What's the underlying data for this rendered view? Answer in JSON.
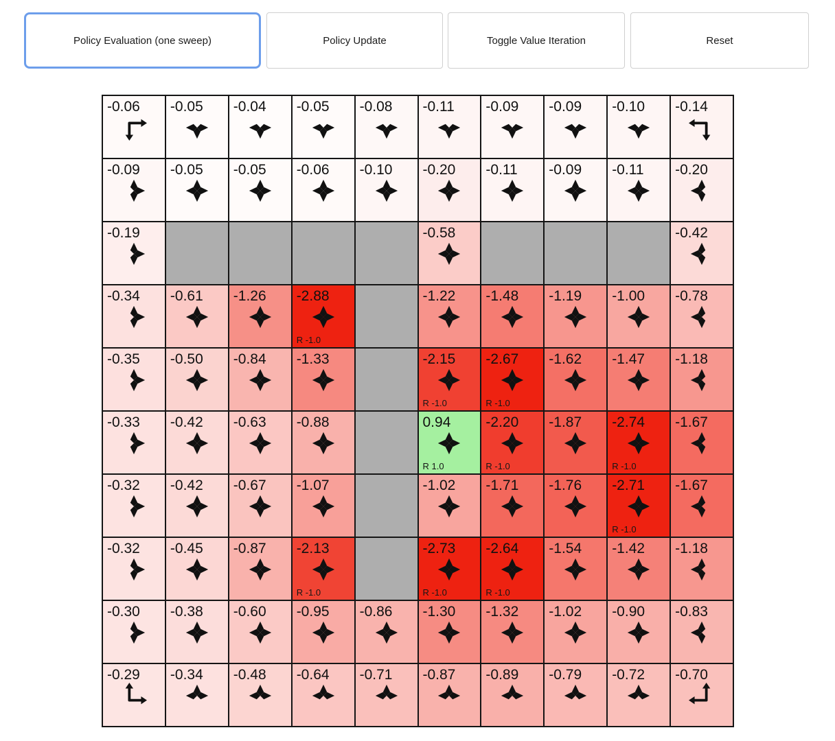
{
  "toolbar": {
    "buttons": [
      {
        "label": "Policy Evaluation (one sweep)",
        "active": true
      },
      {
        "label": "Policy Update",
        "active": false
      },
      {
        "label": "Toggle Value Iteration",
        "active": false
      },
      {
        "label": "Reset",
        "active": false
      }
    ]
  },
  "colors": {
    "active_button_border": "#6d9eeb",
    "button_border": "#cfcfcf",
    "grid_line": "#151515",
    "wall": "#aeaeae",
    "terminal_red": "#ee2211",
    "terminal_green": "#a5f0a0",
    "text": "#111111"
  },
  "grid": {
    "rows": 10,
    "cols": 10,
    "cells": [
      [
        {
          "value": "-0.06",
          "actions": [
            "right",
            "down"
          ],
          "bg": "#fffaf9"
        },
        {
          "value": "-0.05",
          "actions": [
            "left",
            "right",
            "down"
          ],
          "bg": "#fffbfa"
        },
        {
          "value": "-0.04",
          "actions": [
            "left",
            "right",
            "down"
          ],
          "bg": "#fffcfb"
        },
        {
          "value": "-0.05",
          "actions": [
            "left",
            "right",
            "down"
          ],
          "bg": "#fffbfa"
        },
        {
          "value": "-0.08",
          "actions": [
            "left",
            "right",
            "down"
          ],
          "bg": "#fef8f7"
        },
        {
          "value": "-0.11",
          "actions": [
            "left",
            "right",
            "down"
          ],
          "bg": "#fef5f4"
        },
        {
          "value": "-0.09",
          "actions": [
            "left",
            "right",
            "down"
          ],
          "bg": "#fef7f6"
        },
        {
          "value": "-0.09",
          "actions": [
            "left",
            "right",
            "down"
          ],
          "bg": "#fef7f6"
        },
        {
          "value": "-0.10",
          "actions": [
            "left",
            "right",
            "down"
          ],
          "bg": "#fef6f5"
        },
        {
          "value": "-0.14",
          "actions": [
            "left",
            "down"
          ],
          "bg": "#fef3f2"
        }
      ],
      [
        {
          "value": "-0.09",
          "actions": [
            "up",
            "right",
            "down"
          ],
          "bg": "#fef7f6"
        },
        {
          "value": "-0.05",
          "actions": [
            "up",
            "right",
            "down",
            "left"
          ],
          "bg": "#fffbfa"
        },
        {
          "value": "-0.05",
          "actions": [
            "up",
            "right",
            "down",
            "left"
          ],
          "bg": "#fffbfa"
        },
        {
          "value": "-0.06",
          "actions": [
            "up",
            "right",
            "down",
            "left"
          ],
          "bg": "#fffaf9"
        },
        {
          "value": "-0.10",
          "actions": [
            "up",
            "right",
            "down",
            "left"
          ],
          "bg": "#fef6f5"
        },
        {
          "value": "-0.20",
          "actions": [
            "up",
            "right",
            "down",
            "left"
          ],
          "bg": "#fdedec"
        },
        {
          "value": "-0.11",
          "actions": [
            "up",
            "right",
            "down",
            "left"
          ],
          "bg": "#fef5f4"
        },
        {
          "value": "-0.09",
          "actions": [
            "up",
            "right",
            "down",
            "left"
          ],
          "bg": "#fef7f6"
        },
        {
          "value": "-0.11",
          "actions": [
            "up",
            "right",
            "down",
            "left"
          ],
          "bg": "#fef5f4"
        },
        {
          "value": "-0.20",
          "actions": [
            "up",
            "left",
            "down"
          ],
          "bg": "#fdedec"
        }
      ],
      [
        {
          "value": "-0.19",
          "actions": [
            "up",
            "right",
            "down"
          ],
          "bg": "#feeeed"
        },
        {
          "wall": true
        },
        {
          "wall": true
        },
        {
          "wall": true
        },
        {
          "wall": true
        },
        {
          "value": "-0.58",
          "actions": [
            "up",
            "right",
            "down",
            "left"
          ],
          "bg": "#fbccc8"
        },
        {
          "wall": true
        },
        {
          "wall": true
        },
        {
          "wall": true
        },
        {
          "value": "-0.42",
          "actions": [
            "up",
            "left",
            "down"
          ],
          "bg": "#fcdad7"
        }
      ],
      [
        {
          "value": "-0.34",
          "actions": [
            "up",
            "right",
            "down"
          ],
          "bg": "#fde1df"
        },
        {
          "value": "-0.61",
          "actions": [
            "up",
            "right",
            "down",
            "left"
          ],
          "bg": "#fbc9c5"
        },
        {
          "value": "-1.26",
          "actions": [
            "up",
            "right",
            "down",
            "left"
          ],
          "bg": "#f69087"
        },
        {
          "value": "-2.88",
          "actions": [
            "up",
            "right",
            "down",
            "left"
          ],
          "bg": "#ee2211",
          "reward": "R -1.0"
        },
        {
          "wall": true
        },
        {
          "value": "-1.22",
          "actions": [
            "up",
            "right",
            "down",
            "left"
          ],
          "bg": "#f7938b"
        },
        {
          "value": "-1.48",
          "actions": [
            "up",
            "right",
            "down",
            "left"
          ],
          "bg": "#f57c72"
        },
        {
          "value": "-1.19",
          "actions": [
            "up",
            "right",
            "down",
            "left"
          ],
          "bg": "#f7968e"
        },
        {
          "value": "-1.00",
          "actions": [
            "up",
            "right",
            "down",
            "left"
          ],
          "bg": "#f8a7a0"
        },
        {
          "value": "-0.78",
          "actions": [
            "up",
            "left",
            "down"
          ],
          "bg": "#fabab5"
        }
      ],
      [
        {
          "value": "-0.35",
          "actions": [
            "up",
            "right",
            "down"
          ],
          "bg": "#fde0de"
        },
        {
          "value": "-0.50",
          "actions": [
            "up",
            "right",
            "down",
            "left"
          ],
          "bg": "#fbd3cf"
        },
        {
          "value": "-0.84",
          "actions": [
            "up",
            "right",
            "down",
            "left"
          ],
          "bg": "#f9b5af"
        },
        {
          "value": "-1.33",
          "actions": [
            "up",
            "right",
            "down",
            "left"
          ],
          "bg": "#f68980"
        },
        {
          "wall": true
        },
        {
          "value": "-2.15",
          "actions": [
            "up",
            "right",
            "down",
            "left"
          ],
          "bg": "#f04132",
          "reward": "R -1.0"
        },
        {
          "value": "-2.67",
          "actions": [
            "up",
            "right",
            "down",
            "left"
          ],
          "bg": "#ee2211",
          "reward": "R -1.0"
        },
        {
          "value": "-1.62",
          "actions": [
            "up",
            "right",
            "down",
            "left"
          ],
          "bg": "#f47065"
        },
        {
          "value": "-1.47",
          "actions": [
            "up",
            "right",
            "down",
            "left"
          ],
          "bg": "#f57d73"
        },
        {
          "value": "-1.18",
          "actions": [
            "up",
            "left",
            "down"
          ],
          "bg": "#f7978f"
        }
      ],
      [
        {
          "value": "-0.33",
          "actions": [
            "up",
            "right",
            "down"
          ],
          "bg": "#fde2e0"
        },
        {
          "value": "-0.42",
          "actions": [
            "up",
            "right",
            "down",
            "left"
          ],
          "bg": "#fcdad7"
        },
        {
          "value": "-0.63",
          "actions": [
            "up",
            "right",
            "down",
            "left"
          ],
          "bg": "#fbc7c3"
        },
        {
          "value": "-0.88",
          "actions": [
            "up",
            "right",
            "down",
            "left"
          ],
          "bg": "#f9b1ab"
        },
        {
          "wall": true
        },
        {
          "value": "0.94",
          "actions": [
            "up",
            "right",
            "down",
            "left"
          ],
          "bg": "#a5f0a0",
          "reward": "R 1.0"
        },
        {
          "value": "-2.20",
          "actions": [
            "up",
            "right",
            "down",
            "left"
          ],
          "bg": "#f03d2e",
          "reward": "R -1.0"
        },
        {
          "value": "-1.87",
          "actions": [
            "up",
            "right",
            "down",
            "left"
          ],
          "bg": "#f25a4d"
        },
        {
          "value": "-2.74",
          "actions": [
            "up",
            "right",
            "down",
            "left"
          ],
          "bg": "#ee2211",
          "reward": "R -1.0"
        },
        {
          "value": "-1.67",
          "actions": [
            "up",
            "left",
            "down"
          ],
          "bg": "#f46b60"
        }
      ],
      [
        {
          "value": "-0.32",
          "actions": [
            "up",
            "right",
            "down"
          ],
          "bg": "#fde3e1"
        },
        {
          "value": "-0.42",
          "actions": [
            "up",
            "right",
            "down",
            "left"
          ],
          "bg": "#fcdad7"
        },
        {
          "value": "-0.67",
          "actions": [
            "up",
            "right",
            "down",
            "left"
          ],
          "bg": "#fac4bf"
        },
        {
          "value": "-1.07",
          "actions": [
            "up",
            "right",
            "down",
            "left"
          ],
          "bg": "#f8a099"
        },
        {
          "wall": true
        },
        {
          "value": "-1.02",
          "actions": [
            "up",
            "right",
            "down",
            "left"
          ],
          "bg": "#f8a59e"
        },
        {
          "value": "-1.71",
          "actions": [
            "up",
            "right",
            "down",
            "left"
          ],
          "bg": "#f3685c"
        },
        {
          "value": "-1.76",
          "actions": [
            "up",
            "right",
            "down",
            "left"
          ],
          "bg": "#f36357"
        },
        {
          "value": "-2.71",
          "actions": [
            "up",
            "right",
            "down",
            "left"
          ],
          "bg": "#ee2211",
          "reward": "R -1.0"
        },
        {
          "value": "-1.67",
          "actions": [
            "up",
            "left",
            "down"
          ],
          "bg": "#f46b60"
        }
      ],
      [
        {
          "value": "-0.32",
          "actions": [
            "up",
            "right",
            "down"
          ],
          "bg": "#fde3e1"
        },
        {
          "value": "-0.45",
          "actions": [
            "up",
            "right",
            "down",
            "left"
          ],
          "bg": "#fcd7d4"
        },
        {
          "value": "-0.87",
          "actions": [
            "up",
            "right",
            "down",
            "left"
          ],
          "bg": "#f9b2ac"
        },
        {
          "value": "-2.13",
          "actions": [
            "up",
            "right",
            "down",
            "left"
          ],
          "bg": "#f04434",
          "reward": "R -1.0"
        },
        {
          "wall": true
        },
        {
          "value": "-2.73",
          "actions": [
            "up",
            "right",
            "down",
            "left"
          ],
          "bg": "#ee2211",
          "reward": "R -1.0"
        },
        {
          "value": "-2.64",
          "actions": [
            "up",
            "right",
            "down",
            "left"
          ],
          "bg": "#ee2211",
          "reward": "R -1.0"
        },
        {
          "value": "-1.54",
          "actions": [
            "up",
            "right",
            "down",
            "left"
          ],
          "bg": "#f5776c"
        },
        {
          "value": "-1.42",
          "actions": [
            "up",
            "right",
            "down",
            "left"
          ],
          "bg": "#f58178"
        },
        {
          "value": "-1.18",
          "actions": [
            "up",
            "left",
            "down"
          ],
          "bg": "#f7978f"
        }
      ],
      [
        {
          "value": "-0.30",
          "actions": [
            "up",
            "right",
            "down"
          ],
          "bg": "#fde4e2"
        },
        {
          "value": "-0.38",
          "actions": [
            "up",
            "right",
            "down",
            "left"
          ],
          "bg": "#fcdddb"
        },
        {
          "value": "-0.60",
          "actions": [
            "up",
            "right",
            "down",
            "left"
          ],
          "bg": "#fbcac6"
        },
        {
          "value": "-0.95",
          "actions": [
            "up",
            "right",
            "down",
            "left"
          ],
          "bg": "#f9aba5"
        },
        {
          "value": "-0.86",
          "actions": [
            "up",
            "right",
            "down",
            "left"
          ],
          "bg": "#f9b3ad"
        },
        {
          "value": "-1.30",
          "actions": [
            "up",
            "right",
            "down",
            "left"
          ],
          "bg": "#f68c83"
        },
        {
          "value": "-1.32",
          "actions": [
            "up",
            "right",
            "down",
            "left"
          ],
          "bg": "#f68a81"
        },
        {
          "value": "-1.02",
          "actions": [
            "up",
            "right",
            "down",
            "left"
          ],
          "bg": "#f8a59e"
        },
        {
          "value": "-0.90",
          "actions": [
            "up",
            "right",
            "down",
            "left"
          ],
          "bg": "#f9afa9"
        },
        {
          "value": "-0.83",
          "actions": [
            "up",
            "left",
            "down"
          ],
          "bg": "#f9b6b0"
        }
      ],
      [
        {
          "value": "-0.29",
          "actions": [
            "up",
            "right"
          ],
          "bg": "#fde5e3"
        },
        {
          "value": "-0.34",
          "actions": [
            "left",
            "up",
            "right"
          ],
          "bg": "#fde1df"
        },
        {
          "value": "-0.48",
          "actions": [
            "left",
            "up",
            "right"
          ],
          "bg": "#fcd5d1"
        },
        {
          "value": "-0.64",
          "actions": [
            "left",
            "up",
            "right"
          ],
          "bg": "#fbc6c2"
        },
        {
          "value": "-0.71",
          "actions": [
            "left",
            "up",
            "right"
          ],
          "bg": "#fac0bb"
        },
        {
          "value": "-0.87",
          "actions": [
            "left",
            "up",
            "right"
          ],
          "bg": "#f9b2ac"
        },
        {
          "value": "-0.89",
          "actions": [
            "left",
            "up",
            "right"
          ],
          "bg": "#f9b0aa"
        },
        {
          "value": "-0.79",
          "actions": [
            "left",
            "up",
            "right"
          ],
          "bg": "#fab9b4"
        },
        {
          "value": "-0.72",
          "actions": [
            "left",
            "up",
            "right"
          ],
          "bg": "#fabfba"
        },
        {
          "value": "-0.70",
          "actions": [
            "up",
            "left"
          ],
          "bg": "#fac1bc"
        }
      ]
    ]
  }
}
